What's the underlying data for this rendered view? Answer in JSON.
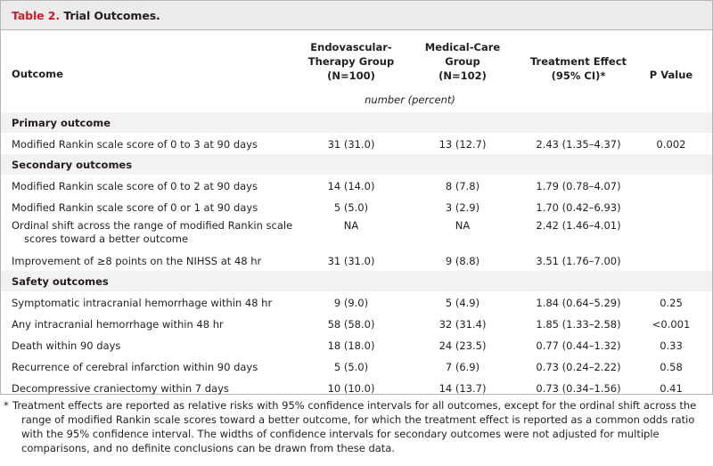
{
  "table": {
    "title_num": "Table 2.",
    "title_text": "Trial Outcomes.",
    "headers": {
      "outcome": "Outcome",
      "endo_line1": "Endovascular-",
      "endo_line2": "Therapy Group",
      "endo_line3": "(N=100)",
      "med_line1": "Medical-Care",
      "med_line2": "Group",
      "med_line3": "(N=102)",
      "te_line1": "Treatment Effect",
      "te_line2": "(95% CI)*",
      "p": "P Value"
    },
    "unit": "number (percent)",
    "rows": [
      {
        "type": "section",
        "label": "Primary outcome"
      },
      {
        "type": "data",
        "label": "Modified Rankin scale score of 0 to 3 at 90 days",
        "endo": "31 (31.0)",
        "med": "13 (12.7)",
        "te": "2.43 (1.35–4.37)",
        "p": "0.002"
      },
      {
        "type": "section",
        "label": "Secondary outcomes"
      },
      {
        "type": "data",
        "label": "Modified Rankin scale score of 0 to 2 at 90 days",
        "endo": "14 (14.0)",
        "med": "8 (7.8)",
        "te": "1.79 (0.78–4.07)",
        "p": ""
      },
      {
        "type": "data",
        "label": "Modified Rankin scale score of 0 or 1 at 90 days",
        "endo": "5 (5.0)",
        "med": "3 (2.9)",
        "te": "1.70 (0.42–6.93)",
        "p": ""
      },
      {
        "type": "data2",
        "label1": "Ordinal shift across the range of modified Rankin scale",
        "label2": "scores toward a better outcome",
        "endo": "NA",
        "med": "NA",
        "te": "2.42 (1.46–4.01)",
        "p": ""
      },
      {
        "type": "data",
        "label": "Improvement of ≥8 points on the NIHSS at 48 hr",
        "endo": "31 (31.0)",
        "med": "9 (8.8)",
        "te": "3.51 (1.76–7.00)",
        "p": ""
      },
      {
        "type": "section",
        "label": "Safety outcomes"
      },
      {
        "type": "data",
        "label": "Symptomatic intracranial hemorrhage within 48 hr",
        "endo": "9 (9.0)",
        "med": "5 (4.9)",
        "te": "1.84 (0.64–5.29)",
        "p": "0.25"
      },
      {
        "type": "data",
        "label": "Any intracranial hemorrhage within 48 hr",
        "endo": "58 (58.0)",
        "med": "32 (31.4)",
        "te": "1.85 (1.33–2.58)",
        "p": "<0.001"
      },
      {
        "type": "data",
        "label": "Death within 90 days",
        "endo": "18 (18.0)",
        "med": "24 (23.5)",
        "te": "0.77 (0.44–1.32)",
        "p": "0.33"
      },
      {
        "type": "data",
        "label": "Recurrence of cerebral infarction within 90 days",
        "endo": "5 (5.0)",
        "med": "7 (6.9)",
        "te": "0.73 (0.24–2.22)",
        "p": "0.58"
      },
      {
        "type": "data",
        "label": "Decompressive craniectomy within 7 days",
        "endo": "10 (10.0)",
        "med": "14 (13.7)",
        "te": "0.73 (0.34–1.56)",
        "p": "0.41"
      }
    ],
    "footnote_mark": "*",
    "footnote": "Treatment effects are reported as relative risks with 95% confidence intervals for all outcomes, except for the ordinal shift across the range of modified Rankin scale scores toward a better outcome, for which the treatment effect is reported as a common odds ratio with the 95% confidence interval. The widths of confidence intervals for secondary outcomes were not adjusted for multiple comparisons, and no definite conclusions can be drawn from these data."
  }
}
